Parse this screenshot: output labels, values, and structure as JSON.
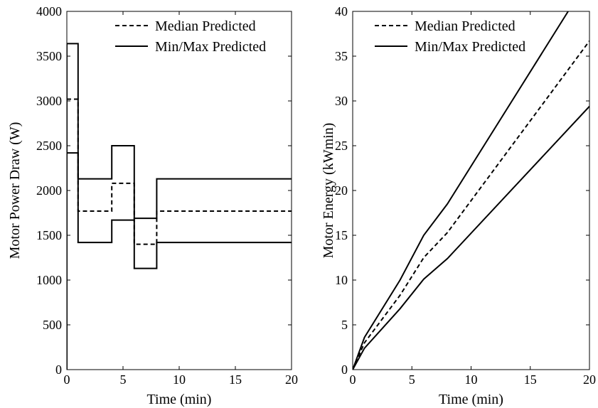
{
  "chart_data": [
    {
      "type": "line",
      "xlabel": "Time (min)",
      "ylabel": "Motor Power Draw (W)",
      "xlim": [
        0,
        20
      ],
      "ylim": [
        0,
        4000
      ],
      "xticks": [
        0,
        5,
        10,
        15,
        20
      ],
      "yticks": [
        0,
        500,
        1000,
        1500,
        2000,
        2500,
        3000,
        3500,
        4000
      ],
      "grid": false,
      "legend_position": "top-right",
      "legend": [
        {
          "label": "Median Predicted",
          "style": "dashed"
        },
        {
          "label": "Min/Max Predicted",
          "style": "solid"
        }
      ],
      "series": [
        {
          "name": "Median Predicted",
          "style": "dashed",
          "x": [
            0,
            1,
            1,
            4,
            4,
            6,
            6,
            8,
            8,
            20
          ],
          "y": [
            3020,
            3020,
            1770,
            1770,
            2080,
            2080,
            1400,
            1400,
            1770,
            1770
          ]
        },
        {
          "name": "Min/Max Predicted",
          "style": "solid",
          "x": [
            0,
            0,
            1,
            1,
            4,
            4,
            6,
            6,
            8,
            8,
            20
          ],
          "y": [
            0,
            3640,
            3640,
            2130,
            2130,
            2500,
            2500,
            1690,
            1690,
            2130,
            2130
          ]
        },
        {
          "name": "Min/Max Predicted",
          "style": "solid",
          "x": [
            0,
            1,
            1,
            4,
            4,
            6,
            6,
            8,
            8,
            20
          ],
          "y": [
            2420,
            2420,
            1420,
            1420,
            1670,
            1670,
            1130,
            1130,
            1420,
            1420
          ]
        }
      ]
    },
    {
      "type": "line",
      "xlabel": "Time (min)",
      "ylabel": "Motor Energy (kWmin)",
      "xlim": [
        0,
        20
      ],
      "ylim": [
        0,
        40
      ],
      "xticks": [
        0,
        5,
        10,
        15,
        20
      ],
      "yticks": [
        0,
        5,
        10,
        15,
        20,
        25,
        30,
        35,
        40
      ],
      "grid": false,
      "legend_position": "top-left",
      "legend": [
        {
          "label": "Median Predicted",
          "style": "dashed"
        },
        {
          "label": "Min/Max Predicted",
          "style": "solid"
        }
      ],
      "series": [
        {
          "name": "Median Predicted",
          "style": "dashed",
          "x": [
            0,
            1,
            4,
            6,
            8,
            20
          ],
          "y": [
            0,
            3.0,
            8.3,
            12.5,
            15.3,
            36.7
          ]
        },
        {
          "name": "Min/Max Predicted",
          "style": "solid",
          "x": [
            0,
            1,
            4,
            6,
            8,
            18.2
          ],
          "y": [
            0,
            3.6,
            10.0,
            15.0,
            18.5,
            40
          ]
        },
        {
          "name": "Min/Max Predicted",
          "style": "solid",
          "x": [
            0,
            1,
            4,
            6,
            8,
            20
          ],
          "y": [
            0,
            2.4,
            6.8,
            10.1,
            12.4,
            29.4
          ]
        }
      ]
    }
  ]
}
